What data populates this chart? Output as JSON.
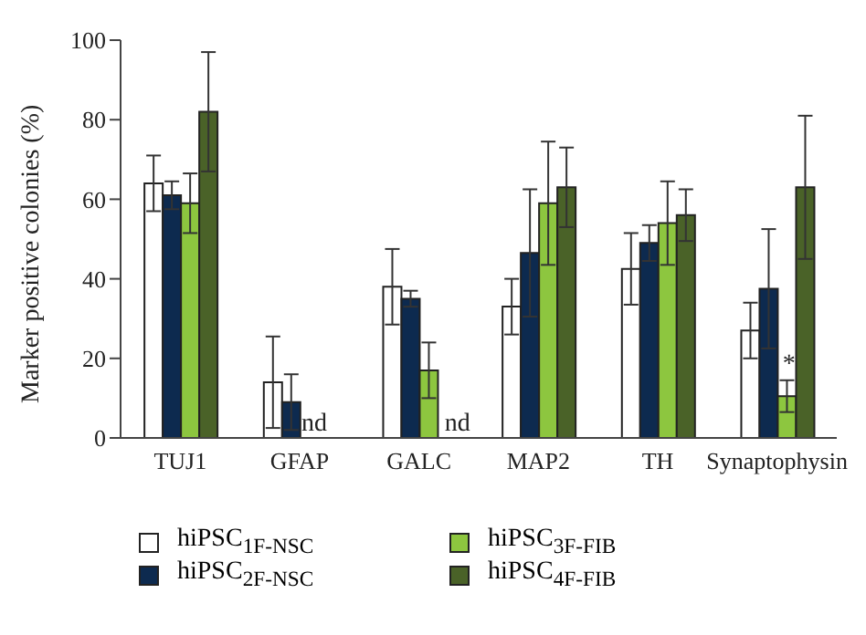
{
  "chart_data": {
    "type": "bar",
    "ylabel": "Marker positive colonies (%)",
    "categories": [
      "TUJ1",
      "GFAP",
      "GALC",
      "MAP2",
      "TH",
      "Synaptophysin"
    ],
    "series": [
      {
        "name": "hiPSC$_{1F-NSC}$",
        "color": "#ffffff",
        "values": [
          64,
          14,
          38,
          33,
          42.5,
          27
        ],
        "errors": [
          7,
          11.5,
          9.5,
          7,
          9,
          7
        ]
      },
      {
        "name": "hiPSC$_{2F-NSC}$",
        "color": "#0d2a4f",
        "values": [
          61,
          9,
          35,
          46.5,
          49,
          37.5
        ],
        "errors": [
          3.5,
          7,
          2,
          16,
          4.5,
          15
        ]
      },
      {
        "name": "hiPSC$_{3F-FIB}$",
        "color": "#8dc63f",
        "values": [
          59,
          null,
          17,
          59,
          54,
          10.5
        ],
        "errors": [
          7.5,
          null,
          7,
          15.5,
          10.5,
          4
        ]
      },
      {
        "name": "hiPSC$_{4F-FIB}$",
        "color": "#4a6228",
        "values": [
          82,
          null,
          null,
          63,
          56,
          63
        ],
        "errors": [
          15,
          null,
          null,
          10,
          6.5,
          18
        ]
      }
    ],
    "ylim": [
      0,
      100
    ],
    "yticks": [
      0,
      20,
      40,
      60,
      80,
      100
    ],
    "grid": false,
    "legend": "bottom",
    "annotations": [
      {
        "text": "nd",
        "x": "GFAP",
        "y": 0
      },
      {
        "text": "nd",
        "x": "GALC",
        "y": 0
      },
      {
        "text": "*",
        "x": "Synaptophysin",
        "y": 15
      }
    ]
  }
}
